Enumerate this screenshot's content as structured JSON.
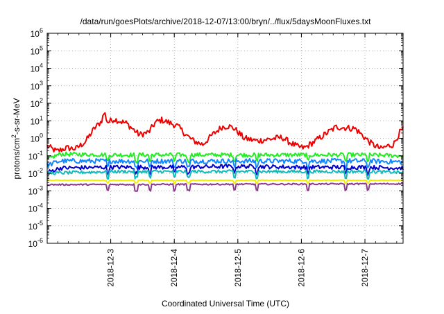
{
  "chart_data": {
    "type": "line",
    "title": "/data/run/goesPlots/archive/2018-12-07/13:00/bryn/../flux/5daysMoonFluxes.txt",
    "xlabel": "Coordinated Universal Time (UTC)",
    "ylabel": {
      "base": "protons/cm",
      "sup": "2",
      "rest": "-s-sr-MeV"
    },
    "x_ticks": [
      "2018-12-3",
      "2018-12-4",
      "2018-12-5",
      "2018-12-6",
      "2018-12-7"
    ],
    "x_range_days": [
      0,
      5.6
    ],
    "x_tick_positions_days": [
      1,
      2,
      3,
      4,
      5
    ],
    "y_scale": "log",
    "y_exp_range": [
      -6,
      6
    ],
    "y_tick_exps": [
      -6,
      -5,
      -4,
      -3,
      -2,
      -1,
      0,
      1,
      2,
      3,
      4,
      5,
      6
    ],
    "grid": true,
    "series": [
      {
        "color": "#ee0000",
        "width": 2.0,
        "noise": 0.18,
        "keyframes": [
          [
            0.0,
            -0.45
          ],
          [
            0.15,
            -0.75
          ],
          [
            0.3,
            -0.55
          ],
          [
            0.45,
            -0.6
          ],
          [
            0.6,
            -0.2
          ],
          [
            0.75,
            0.6
          ],
          [
            0.85,
            0.95
          ],
          [
            0.9,
            1.5
          ],
          [
            0.95,
            0.9
          ],
          [
            1.05,
            1.1
          ],
          [
            1.25,
            0.85
          ],
          [
            1.45,
            0.2
          ],
          [
            1.6,
            0.35
          ],
          [
            1.7,
            0.9
          ],
          [
            1.8,
            1.05
          ],
          [
            1.95,
            0.85
          ],
          [
            2.05,
            0.7
          ],
          [
            2.2,
            0.15
          ],
          [
            2.3,
            -0.15
          ],
          [
            2.45,
            -0.35
          ],
          [
            2.6,
            0.2
          ],
          [
            2.75,
            0.65
          ],
          [
            2.85,
            0.7
          ],
          [
            2.95,
            0.55
          ],
          [
            3.1,
            0.0
          ],
          [
            3.3,
            -0.15
          ],
          [
            3.5,
            -0.05
          ],
          [
            3.7,
            0.05
          ],
          [
            3.8,
            -0.2
          ],
          [
            3.95,
            -0.5
          ],
          [
            4.05,
            -0.55
          ],
          [
            4.2,
            -0.2
          ],
          [
            4.4,
            0.3
          ],
          [
            4.55,
            0.65
          ],
          [
            4.7,
            0.6
          ],
          [
            4.85,
            0.55
          ],
          [
            4.95,
            0.2
          ],
          [
            5.1,
            -0.3
          ],
          [
            5.25,
            -0.6
          ],
          [
            5.35,
            -0.45
          ],
          [
            5.45,
            -0.35
          ],
          [
            5.55,
            0.35
          ],
          [
            5.6,
            0.5
          ]
        ]
      },
      {
        "color": "#22ee22",
        "width": 2.0,
        "noise": 0.12,
        "keyframes": [
          [
            0.0,
            -1.2
          ],
          [
            0.2,
            -0.9
          ],
          [
            1.0,
            -0.95
          ],
          [
            2.0,
            -0.95
          ],
          [
            3.0,
            -0.95
          ],
          [
            4.0,
            -0.95
          ],
          [
            5.0,
            -0.95
          ],
          [
            5.6,
            -1.0
          ]
        ]
      },
      {
        "color": "#1188ff",
        "width": 2.0,
        "noise": 0.14,
        "keyframes": [
          [
            0.0,
            -1.55
          ],
          [
            0.2,
            -1.3
          ],
          [
            1.0,
            -1.3
          ],
          [
            2.0,
            -1.3
          ],
          [
            3.0,
            -1.3
          ],
          [
            4.0,
            -1.3
          ],
          [
            5.0,
            -1.3
          ],
          [
            5.6,
            -1.35
          ]
        ]
      },
      {
        "color": "#0000cc",
        "width": 2.0,
        "noise": 0.12,
        "keyframes": [
          [
            0.0,
            -1.95
          ],
          [
            0.2,
            -1.7
          ],
          [
            1.0,
            -1.65
          ],
          [
            2.0,
            -1.65
          ],
          [
            3.0,
            -1.6
          ],
          [
            4.0,
            -1.65
          ],
          [
            5.0,
            -1.65
          ],
          [
            5.6,
            -1.7
          ]
        ]
      },
      {
        "color": "#11bbbb",
        "width": 2.0,
        "noise": 0.09,
        "keyframes": [
          [
            0.0,
            -2.0
          ],
          [
            1.0,
            -1.9
          ],
          [
            2.0,
            -1.9
          ],
          [
            3.0,
            -1.9
          ],
          [
            4.0,
            -1.9
          ],
          [
            5.0,
            -1.9
          ],
          [
            5.6,
            -1.95
          ]
        ]
      },
      {
        "color": "#f0f000",
        "width": 2.0,
        "noise": 0.02,
        "keyframes": [
          [
            0.0,
            -2.4
          ],
          [
            5.6,
            -2.4
          ]
        ]
      },
      {
        "color": "#8b3a8b",
        "width": 2.0,
        "noise": 0.04,
        "keyframes": [
          [
            0.0,
            -2.65
          ],
          [
            5.6,
            -2.6
          ]
        ]
      }
    ],
    "dips": [
      0.95,
      1.4,
      1.62,
      2.0,
      2.22,
      2.95,
      3.3,
      4.1,
      4.7,
      5.05
    ]
  }
}
